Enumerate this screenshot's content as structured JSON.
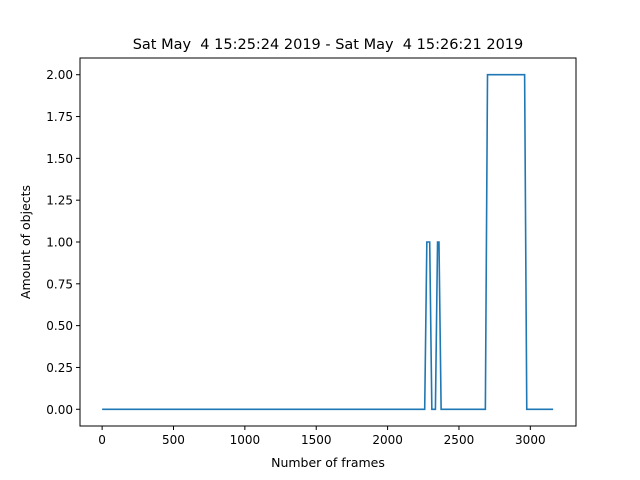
{
  "chart_data": {
    "type": "line",
    "title": "Sat May  4 15:25:24 2019 - Sat May  4 15:26:21 2019",
    "xlabel": "Number of frames",
    "ylabel": "Amount of objects",
    "xlim": [
      -155,
      3320
    ],
    "ylim": [
      -0.1,
      2.1
    ],
    "xticks": [
      0,
      500,
      1000,
      1500,
      2000,
      2500,
      3000
    ],
    "yticks": [
      0.0,
      0.25,
      0.5,
      0.75,
      1.0,
      1.25,
      1.5,
      1.75,
      2.0
    ],
    "ytick_labels": [
      "0.00",
      "0.25",
      "0.50",
      "0.75",
      "1.00",
      "1.25",
      "1.50",
      "1.75",
      "2.00"
    ],
    "grid": false,
    "color": "#1f77b4",
    "series": [
      {
        "x": [
          0,
          2260,
          2275,
          2295,
          2310,
          2335,
          2350,
          2360,
          2375,
          2685,
          2700,
          2960,
          2975,
          3160
        ],
        "y": [
          0,
          0,
          1,
          1,
          0,
          0,
          1,
          1,
          0,
          0,
          2,
          2,
          0,
          0
        ]
      }
    ]
  }
}
